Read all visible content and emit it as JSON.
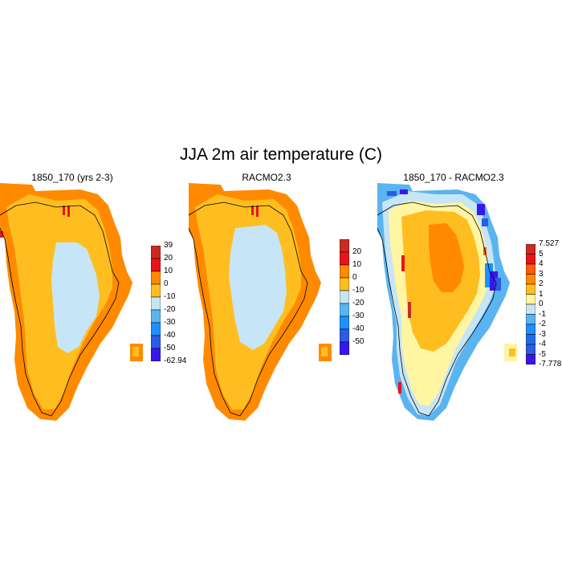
{
  "figure": {
    "title": "JJA 2m air temperature (C)"
  },
  "colors": {
    "dark_red": "#cc2a22",
    "red": "#e8141b",
    "dark_orange": "#ff8a00",
    "orange_light": "#ffbe20",
    "pale_yellow": "#fff5a3",
    "light_blue": "#c6e5f6",
    "sky_blue": "#5ab4ef",
    "blue": "#1e90ff",
    "royal_blue": "#2b5ce6",
    "violet": "#3a16ee",
    "coast": "#000000"
  },
  "panels": [
    {
      "title": "1850_170 (yrs 2-3)",
      "colorbar": {
        "colors": [
          "#cc2a22",
          "#e8141b",
          "#ff8a00",
          "#ffbe20",
          "#c6e5f6",
          "#5ab4ef",
          "#1e90ff",
          "#2b5ce6",
          "#3a16ee"
        ],
        "labels": [
          "39",
          "20",
          "10",
          "0",
          "-10",
          "-20",
          "-30",
          "-40",
          "-50",
          "-62.94"
        ],
        "label_mode": "edges"
      }
    },
    {
      "title": "RACMO2.3",
      "colorbar": {
        "colors": [
          "#cc2a22",
          "#e8141b",
          "#ff8a00",
          "#ffbe20",
          "#c6e5f6",
          "#5ab4ef",
          "#1e90ff",
          "#2b5ce6",
          "#3a16ee"
        ],
        "labels": [
          "20",
          "10",
          "0",
          "-10",
          "-20",
          "-30",
          "-40",
          "-50"
        ],
        "label_mode": "interior"
      }
    },
    {
      "title": "1850_170 - RACMO2.3",
      "colorbar": {
        "colors": [
          "#cc2a22",
          "#e8141b",
          "#ff5a10",
          "#ff8a00",
          "#ffbe20",
          "#fff5a3",
          "#c6e5f6",
          "#5ab4ef",
          "#1e90ff",
          "#1f6de8",
          "#2b5ce6",
          "#3a16ee"
        ],
        "labels": [
          "7.527",
          "5",
          "4",
          "3",
          "2",
          "1",
          "0",
          "-1",
          "-2",
          "-3",
          "-4",
          "-5",
          "-7.778"
        ],
        "label_mode": "edges"
      }
    }
  ]
}
